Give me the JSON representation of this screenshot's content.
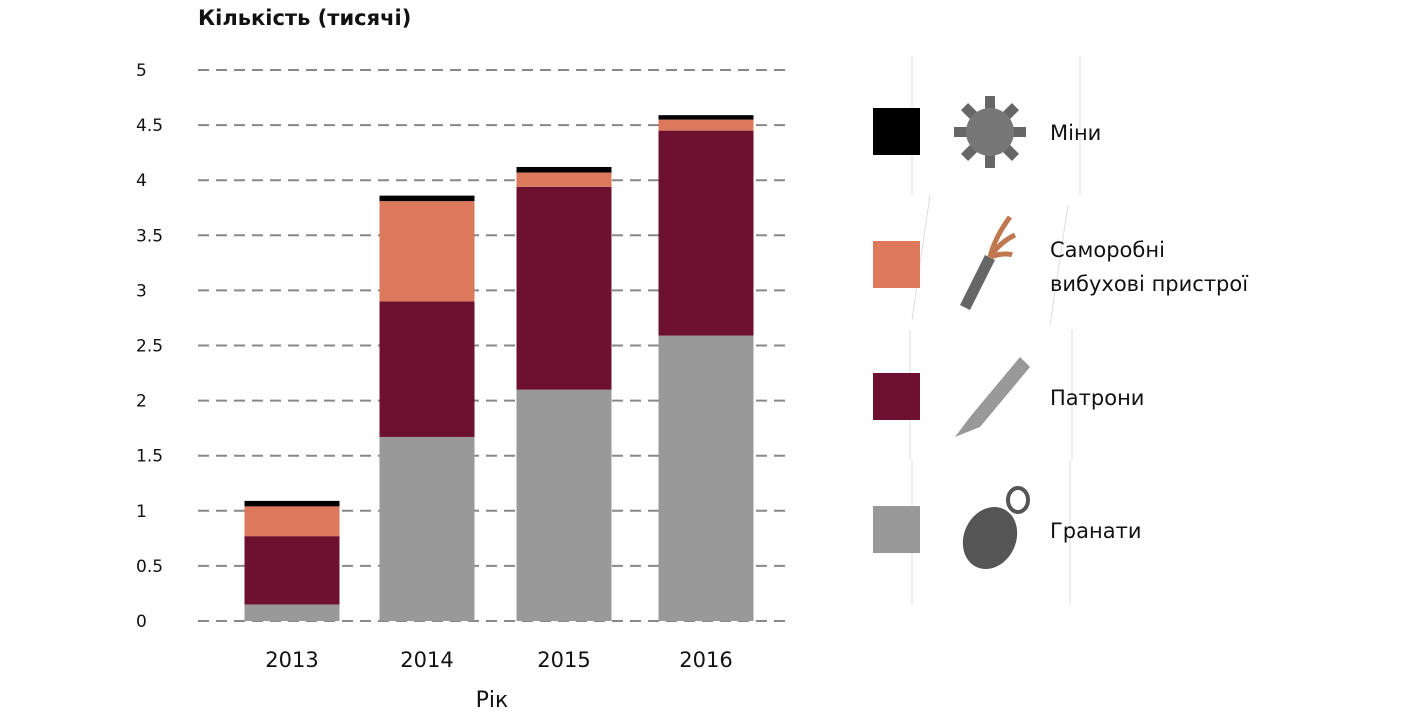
{
  "chart_data": {
    "type": "bar",
    "stacked": true,
    "title": "Кількість (тисячі)",
    "xlabel": "Рік",
    "ylabel": "Кількість (тисячі)",
    "ylim": [
      0,
      5
    ],
    "yticks": [
      "0",
      "0.5",
      "1",
      "1.5",
      "2",
      "2.5",
      "3",
      "3.5",
      "4",
      "4.5",
      "5"
    ],
    "grid": true,
    "legend_position": "right",
    "categories": [
      "2013",
      "2014",
      "2015",
      "2016"
    ],
    "series": [
      {
        "name": "Гранати",
        "color": "#999999",
        "icon": "grenade-icon",
        "values": [
          0.15,
          1.67,
          2.1,
          2.59
        ]
      },
      {
        "name": "Патрони",
        "color": "#6e1030",
        "icon": "cartridge-icon",
        "values": [
          0.62,
          1.23,
          1.84,
          1.86
        ]
      },
      {
        "name": "Саморобні вибухові пристрої",
        "color": "#dc785c",
        "icon": "ied-icon",
        "values": [
          0.27,
          0.91,
          0.13,
          0.1
        ]
      },
      {
        "name": "Міни",
        "color": "#000000",
        "icon": "mine-icon",
        "values": [
          0.05,
          0.05,
          0.05,
          0.04
        ]
      }
    ]
  }
}
